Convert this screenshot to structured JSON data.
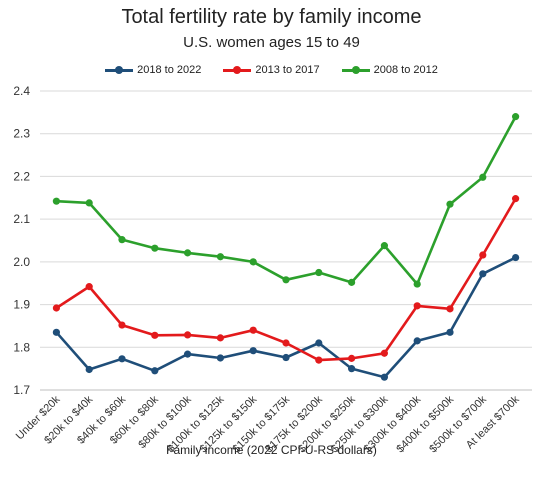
{
  "chart_data": {
    "type": "line",
    "title": "Total fertility rate by family income",
    "subtitle": "U.S. women ages 15 to 49",
    "xlabel": "Family income (2022 CPI-U-RS dollars)",
    "ylabel": "",
    "ylim": [
      1.7,
      2.4
    ],
    "yticks": [
      "1.7",
      "1.8",
      "1.9",
      "2.0",
      "2.1",
      "2.2",
      "2.3",
      "2.4"
    ],
    "grid": "horizontal",
    "legend": "top",
    "categories": [
      "Under $20k",
      "$20k to $40k",
      "$40k to $60k",
      "$60k to $80k",
      "$80k to $100k",
      "$100k to $125k",
      "$125k to $150k",
      "$150k to $175k",
      "$175k to $200k",
      "$200k to $250k",
      "$250k to $300k",
      "$300k to $400k",
      "$400k to $500k",
      "$500k to $700k",
      "At least $700k"
    ],
    "series": [
      {
        "name": "2018 to 2022",
        "color": "#1f4e79",
        "values": [
          1.835,
          1.748,
          1.773,
          1.745,
          1.784,
          1.775,
          1.792,
          1.776,
          1.81,
          1.75,
          1.73,
          1.815,
          1.835,
          1.972,
          2.01
        ]
      },
      {
        "name": "2013 to 2017",
        "color": "#e31a1c",
        "values": [
          1.892,
          1.942,
          1.852,
          1.828,
          1.829,
          1.822,
          1.84,
          1.81,
          1.77,
          1.774,
          1.786,
          1.897,
          1.89,
          2.016,
          2.148
        ]
      },
      {
        "name": "2008 to 2012",
        "color": "#2ca02c",
        "values": [
          2.142,
          2.138,
          2.052,
          2.032,
          2.021,
          2.012,
          2.0,
          1.958,
          1.975,
          1.952,
          2.038,
          1.948,
          2.135,
          2.198,
          2.34
        ]
      }
    ]
  }
}
